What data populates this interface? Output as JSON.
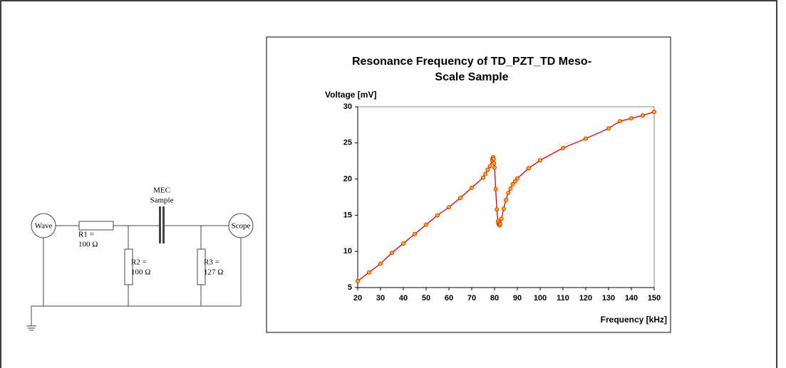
{
  "chart_data": {
    "type": "line",
    "title": [
      "Resonance Frequency of TD_PZT_TD Meso-",
      "Scale Sample"
    ],
    "y_label": "Voltage [mV]",
    "x_label": "Frequency [kHz]",
    "series": [
      {
        "name": "Voltage",
        "color": "#d40000",
        "marker_color": "#ffb000",
        "x": [
          20,
          25,
          30,
          35,
          40,
          45,
          50,
          55,
          60,
          65,
          70,
          75,
          76,
          77,
          78,
          79,
          79.2,
          79.4,
          79.6,
          79.8,
          80,
          80.5,
          81,
          81.5,
          81.7,
          82,
          82.2,
          82.5,
          83,
          84,
          85,
          86,
          87,
          88,
          89,
          90,
          95,
          100,
          110,
          120,
          130,
          135,
          140,
          145,
          150
        ],
        "values": [
          5.9,
          7.1,
          8.3,
          9.8,
          11.1,
          12.4,
          13.7,
          15.0,
          16.1,
          17.4,
          18.8,
          20.2,
          20.7,
          21.3,
          21.8,
          22.6,
          22.9,
          23.0,
          22.8,
          22.2,
          21.6,
          18.6,
          15.8,
          14.2,
          13.9,
          13.7,
          13.6,
          13.8,
          14.5,
          15.9,
          17.1,
          18.1,
          18.7,
          19.3,
          19.7,
          20.1,
          21.5,
          22.6,
          24.3,
          25.6,
          27.0,
          28.0,
          28.4,
          28.8,
          29.3
        ]
      }
    ],
    "xlim": [
      20,
      150
    ],
    "xticks": [
      20,
      30,
      40,
      50,
      60,
      70,
      80,
      90,
      100,
      110,
      120,
      130,
      140,
      150
    ],
    "ylim": [
      5,
      30
    ],
    "yticks": [
      5,
      10,
      15,
      20,
      25,
      30
    ],
    "grid": false
  },
  "circuit": {
    "source": "Wave",
    "meter": "Scope",
    "sample": [
      "MEC",
      "Sample"
    ],
    "r1": [
      "R1 =",
      "100 Ω"
    ],
    "r2": [
      "R2 =",
      "100 Ω"
    ],
    "r3": [
      "R3 =",
      "127 Ω"
    ]
  }
}
